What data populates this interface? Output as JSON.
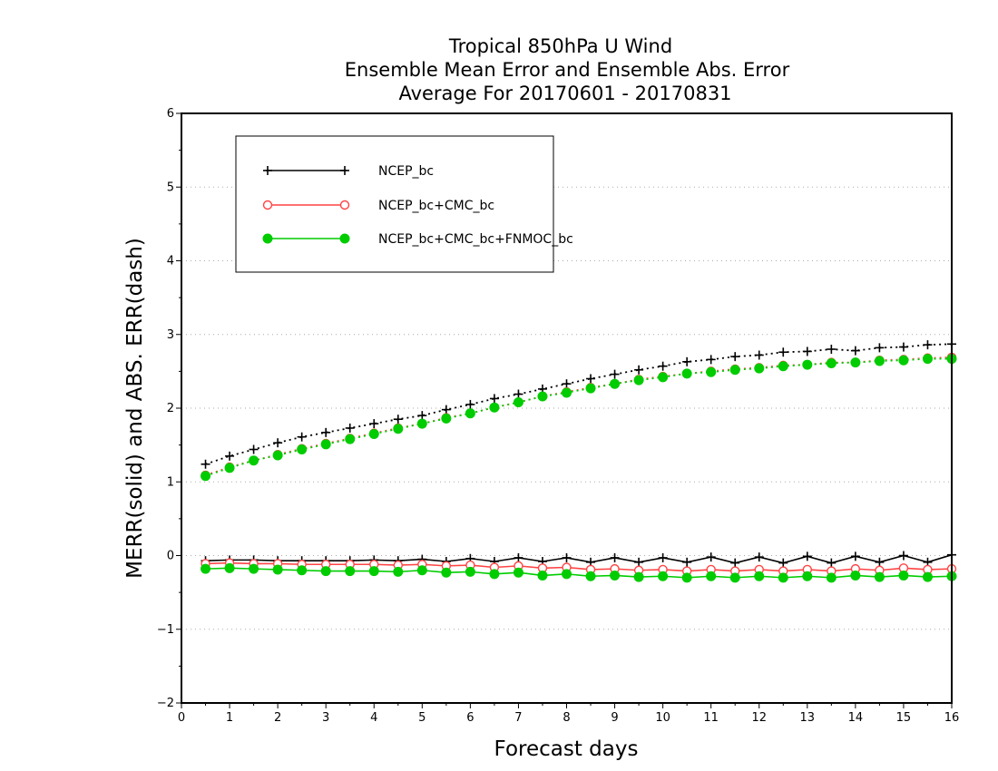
{
  "chart_data": {
    "type": "line",
    "title_lines": [
      "Tropical 850hPa U Wind",
      "Ensemble Mean Error and Ensemble Abs. Error",
      "Average For 20170601 - 20170831"
    ],
    "xlabel": "Forecast days",
    "ylabel": "MERR(solid) and ABS. ERR(dash)",
    "xlim": [
      0,
      16
    ],
    "ylim": [
      -2,
      6
    ],
    "x_ticks": [
      "0",
      "1",
      "2",
      "3",
      "4",
      "5",
      "6",
      "7",
      "8",
      "9",
      "10",
      "11",
      "12",
      "13",
      "14",
      "15",
      "16"
    ],
    "y_ticks": [
      "-2",
      "-1",
      "0",
      "1",
      "2",
      "3",
      "4",
      "5",
      "6"
    ],
    "grid": "horizontal dotted",
    "legend_position": "top-left",
    "x": [
      0.5,
      1,
      1.5,
      2,
      2.5,
      3,
      3.5,
      4,
      4.5,
      5,
      5.5,
      6,
      6.5,
      7,
      7.5,
      8,
      8.5,
      9,
      9.5,
      10,
      10.5,
      11,
      11.5,
      12,
      12.5,
      13,
      13.5,
      14,
      14.5,
      15,
      15.5,
      16
    ],
    "series": [
      {
        "name": "NCEP_bc",
        "color": "#000000",
        "marker": "plus",
        "merr": [
          -0.07,
          -0.06,
          -0.06,
          -0.07,
          -0.07,
          -0.07,
          -0.07,
          -0.06,
          -0.07,
          -0.05,
          -0.08,
          -0.04,
          -0.08,
          -0.03,
          -0.08,
          -0.03,
          -0.09,
          -0.03,
          -0.09,
          -0.03,
          -0.09,
          -0.02,
          -0.1,
          -0.02,
          -0.1,
          -0.01,
          -0.1,
          -0.01,
          -0.09,
          0.0,
          -0.09,
          0.01
        ],
        "abs_err": [
          1.24,
          1.35,
          1.44,
          1.53,
          1.61,
          1.67,
          1.73,
          1.79,
          1.85,
          1.9,
          1.98,
          2.05,
          2.13,
          2.19,
          2.26,
          2.33,
          2.4,
          2.46,
          2.52,
          2.57,
          2.63,
          2.66,
          2.7,
          2.72,
          2.76,
          2.77,
          2.8,
          2.78,
          2.82,
          2.83,
          2.86,
          2.87
        ]
      },
      {
        "name": "NCEP_bc+CMC_bc",
        "color": "#ff4444",
        "marker": "open-circle",
        "merr": [
          -0.11,
          -0.1,
          -0.11,
          -0.11,
          -0.12,
          -0.12,
          -0.12,
          -0.12,
          -0.13,
          -0.12,
          -0.14,
          -0.13,
          -0.16,
          -0.14,
          -0.17,
          -0.16,
          -0.19,
          -0.18,
          -0.2,
          -0.19,
          -0.21,
          -0.19,
          -0.21,
          -0.19,
          -0.21,
          -0.19,
          -0.21,
          -0.18,
          -0.2,
          -0.17,
          -0.19,
          -0.18
        ],
        "abs_err": [
          1.09,
          1.2,
          1.29,
          1.37,
          1.45,
          1.52,
          1.59,
          1.66,
          1.73,
          1.79,
          1.87,
          1.93,
          2.01,
          2.08,
          2.16,
          2.22,
          2.28,
          2.33,
          2.39,
          2.43,
          2.47,
          2.5,
          2.53,
          2.55,
          2.58,
          2.59,
          2.62,
          2.62,
          2.65,
          2.66,
          2.68,
          2.69
        ]
      },
      {
        "name": "NCEP_bc+CMC_bc+FNMOC_bc",
        "color": "#00cc00",
        "marker": "filled-circle",
        "merr": [
          -0.18,
          -0.17,
          -0.18,
          -0.19,
          -0.2,
          -0.21,
          -0.21,
          -0.21,
          -0.22,
          -0.2,
          -0.23,
          -0.22,
          -0.25,
          -0.23,
          -0.27,
          -0.25,
          -0.28,
          -0.27,
          -0.29,
          -0.28,
          -0.3,
          -0.28,
          -0.3,
          -0.28,
          -0.3,
          -0.28,
          -0.3,
          -0.27,
          -0.29,
          -0.27,
          -0.29,
          -0.28
        ],
        "abs_err": [
          1.08,
          1.19,
          1.29,
          1.36,
          1.44,
          1.51,
          1.58,
          1.65,
          1.72,
          1.79,
          1.86,
          1.93,
          2.01,
          2.08,
          2.16,
          2.21,
          2.27,
          2.33,
          2.38,
          2.42,
          2.47,
          2.49,
          2.52,
          2.54,
          2.57,
          2.59,
          2.61,
          2.62,
          2.64,
          2.65,
          2.67,
          2.67
        ]
      }
    ]
  }
}
